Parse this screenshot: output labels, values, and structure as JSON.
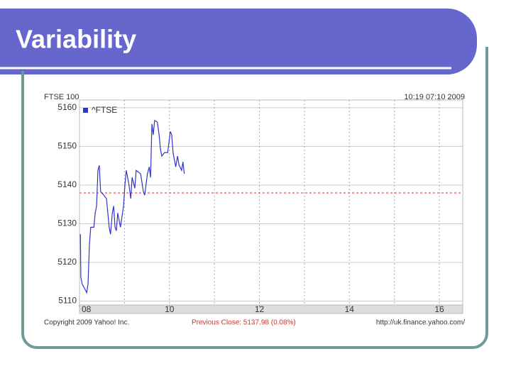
{
  "title": "Variability",
  "chart_data": {
    "type": "line",
    "title": "FTSE 100",
    "timestamp": "10:19 07:10 2009",
    "footer_left": "Copyright 2009 Yahoo! Inc.",
    "footer_center": "Previous Close: 5137.98 (0.08%)",
    "footer_right": "http://uk.finance.yahoo.com/",
    "reference_line": 5137.98,
    "reference_color": "#cc3333",
    "x": [
      8.02,
      8.03,
      8.06,
      8.13,
      8.16,
      8.19,
      8.22,
      8.25,
      8.32,
      8.35,
      8.38,
      8.41,
      8.44,
      8.47,
      8.54,
      8.6,
      8.66,
      8.69,
      8.73,
      8.76,
      8.79,
      8.82,
      8.85,
      8.91,
      8.98,
      9.01,
      9.04,
      9.1,
      9.14,
      9.17,
      9.23,
      9.26,
      9.36,
      9.42,
      9.45,
      9.51,
      9.55,
      9.58,
      9.61,
      9.64,
      9.67,
      9.73,
      9.77,
      9.8,
      9.83,
      9.89,
      9.96,
      10.02,
      10.05,
      10.08,
      10.14,
      10.18,
      10.21,
      10.27,
      10.3,
      10.33
    ],
    "series": [
      {
        "name": "^FTSE",
        "color": "#3333cc",
        "values": [
          5127.3,
          5116.2,
          5114.4,
          5112.9,
          5112.2,
          5114.4,
          5124.5,
          5129.1,
          5129.1,
          5132.8,
          5134.6,
          5143.8,
          5145.1,
          5138.3,
          5137.4,
          5136.5,
          5129.1,
          5127.3,
          5132.8,
          5134.6,
          5129.1,
          5128.2,
          5132.8,
          5129.1,
          5134.6,
          5140.1,
          5143.8,
          5140.1,
          5136.5,
          5142.0,
          5139.2,
          5143.8,
          5142.9,
          5138.3,
          5137.4,
          5142.9,
          5144.7,
          5142.0,
          5155.8,
          5153.0,
          5156.7,
          5156.3,
          5153.0,
          5149.3,
          5147.5,
          5148.4,
          5148.4,
          5153.9,
          5153.0,
          5148.4,
          5144.7,
          5147.5,
          5145.3,
          5143.8,
          5146.0,
          5142.9
        ]
      }
    ],
    "xlim": [
      8,
      16.52
    ],
    "xticks": [
      {
        "value": 8,
        "label": "08"
      },
      10,
      12,
      14,
      16
    ],
    "xgrid": [
      9,
      10,
      11,
      12,
      13,
      14,
      15,
      16
    ],
    "ylim": [
      5109,
      5162
    ],
    "yticks": [
      5110,
      5120,
      5130,
      5140,
      5150,
      5160
    ],
    "grid": true
  }
}
